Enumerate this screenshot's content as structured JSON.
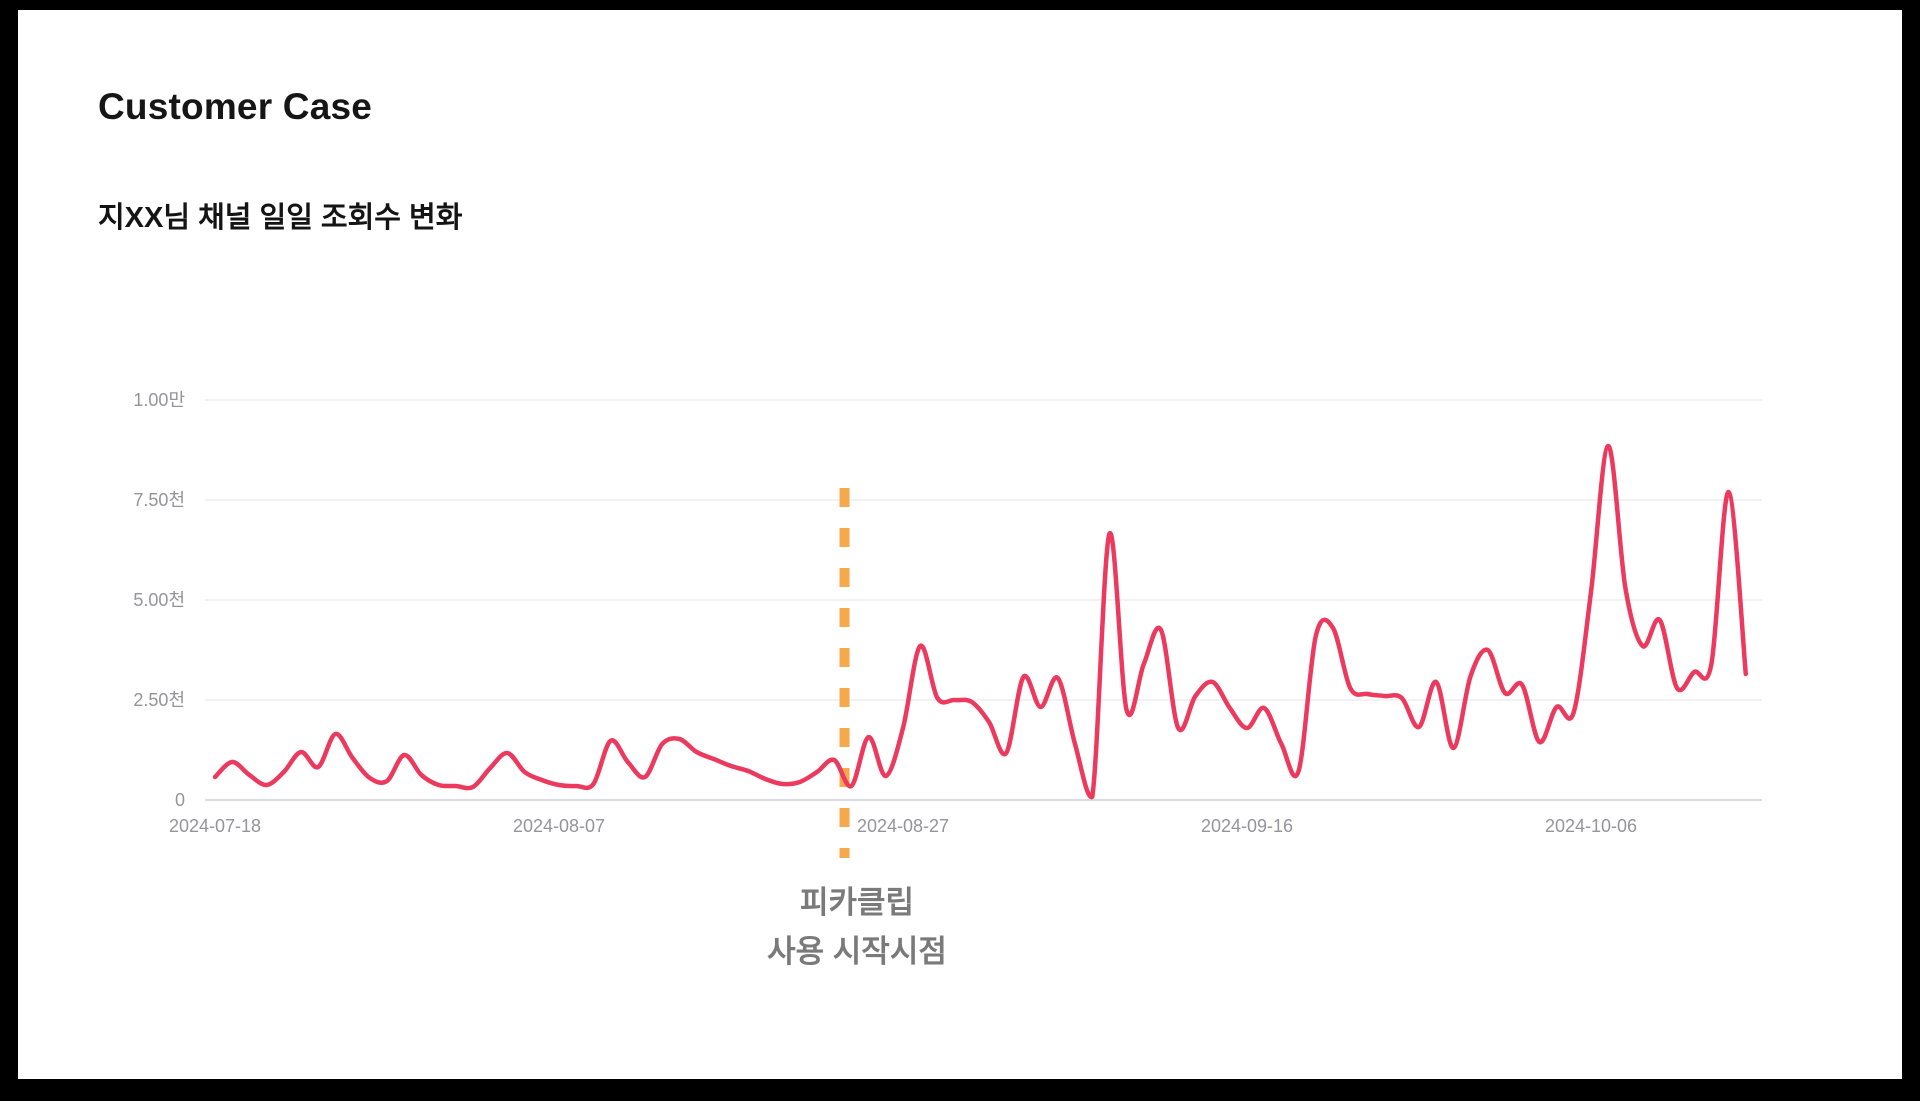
{
  "title": "Customer Case",
  "subtitle": "지XX님 채널 일일 조회수 변화",
  "annotation": {
    "line1": "피카클립",
    "line2": "사용 시작시점"
  },
  "colors": {
    "series_line": "#ec3a5f",
    "marker_line": "#f5a84c",
    "gridline": "#ededed",
    "baseline": "#d9dbe2",
    "tick_text": "#94949a",
    "annotation_text": "#7a7a7a",
    "background": "#ffffff",
    "frame": "#000000"
  },
  "chart_data": {
    "type": "line",
    "title": "지XX님 채널 일일 조회수 변화",
    "xlabel": "",
    "ylabel": "",
    "ylim": [
      0,
      10000
    ],
    "grid": "horizontal",
    "legend": "none",
    "x_unit": "day",
    "x_start_label": "2024-07-18",
    "x_tick_labels": [
      "2024-07-18",
      "2024-08-07",
      "2024-08-27",
      "2024-09-16",
      "2024-10-06"
    ],
    "x_tick_day_index": [
      0,
      20,
      40,
      60,
      80
    ],
    "y_tick_labels": [
      "0",
      "2.50천",
      "5.00천",
      "7.50천",
      "1.00만"
    ],
    "y_tick_values": [
      0,
      2500,
      5000,
      7500,
      10000
    ],
    "series": [
      {
        "name": "일일 조회수",
        "color": "#ec3a5f",
        "values": [
          575,
          950,
          625,
          375,
          700,
          1200,
          825,
          1650,
          1050,
          550,
          475,
          1125,
          625,
          375,
          350,
          325,
          800,
          1175,
          700,
          500,
          375,
          350,
          400,
          1480,
          950,
          575,
          1400,
          1525,
          1200,
          1025,
          850,
          725,
          525,
          400,
          450,
          700,
          1000,
          350,
          1575,
          600,
          1800,
          3850,
          2550,
          2500,
          2450,
          1950,
          1175,
          3075,
          2325,
          3050,
          1400,
          75,
          6650,
          2250,
          3400,
          4250,
          1800,
          2600,
          2950,
          2300,
          1800,
          2300,
          1400,
          725,
          4100,
          4300,
          2800,
          2650,
          2600,
          2550,
          1825,
          2950,
          1300,
          3100,
          3750,
          2675,
          2875,
          1450,
          2325,
          2200,
          5200,
          8850,
          5300,
          3850,
          4500,
          2800,
          3200,
          3400,
          7700,
          3150
        ]
      }
    ],
    "marker": {
      "label": "피카클립 사용 시작시점",
      "day_index": 36.6,
      "color": "#f5a84c",
      "style": "dashed-vertical"
    }
  }
}
